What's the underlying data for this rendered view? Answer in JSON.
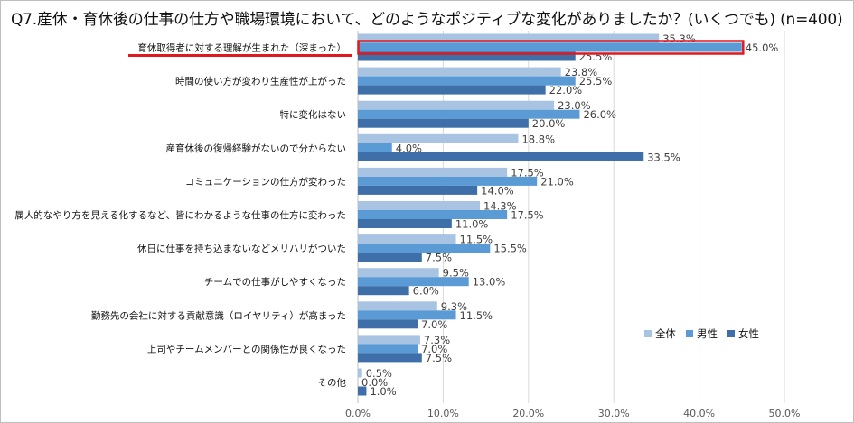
{
  "chart_data": {
    "type": "bar",
    "orientation": "horizontal",
    "title": "Q7.産休・育休後の仕事の仕方や職場環境において、どのようなポジティブな変化がありましたか？(いくつでも) (n=400)",
    "categories": [
      "育休取得者に対する理解が生まれた（深まった）",
      "時間の使い方が変わり生産性が上がった",
      "特に変化はない",
      "産育休後の復帰経験がないので分からない",
      "コミュニケーションの仕方が変わった",
      "属人的なやり方を見える化するなど、皆にわかるような仕事の仕方に変わった",
      "休日に仕事を持ち込まないなどメリハリがついた",
      "チームでの仕事がしやすくなった",
      "勤務先の会社に対する貢献意識（ロイヤリティ）が高まった",
      "上司やチームメンバーとの関係性が良くなった",
      "その他"
    ],
    "series": [
      {
        "name": "全体",
        "color": "#a9c3e3",
        "values": [
          35.3,
          23.8,
          23.0,
          18.8,
          17.5,
          14.3,
          11.5,
          9.5,
          9.3,
          7.3,
          0.5
        ]
      },
      {
        "name": "男性",
        "color": "#5b9bd5",
        "values": [
          45.0,
          25.5,
          26.0,
          4.0,
          21.0,
          17.5,
          15.5,
          13.0,
          11.5,
          7.0,
          0.0
        ]
      },
      {
        "name": "女性",
        "color": "#3f6fa8",
        "values": [
          25.5,
          22.0,
          20.0,
          33.5,
          14.0,
          11.0,
          7.5,
          6.0,
          7.0,
          7.5,
          1.0
        ]
      }
    ],
    "xlim": [
      0,
      50
    ],
    "xticks": [
      "0.0%",
      "10.0%",
      "20.0%",
      "30.0%",
      "40.0%",
      "50.0%"
    ],
    "legend_position": "right",
    "highlight": {
      "category": "育休取得者に対する理解が生まれた（深まった）",
      "series": "男性",
      "color": "#e0191f"
    },
    "grid": true
  }
}
